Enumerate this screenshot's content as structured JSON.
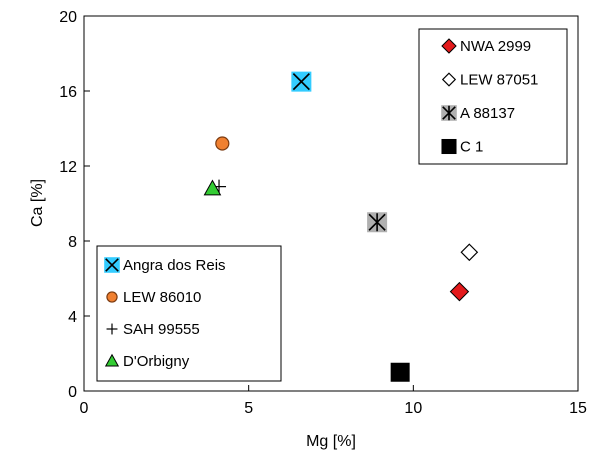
{
  "chart_data": {
    "type": "scatter",
    "xlabel": "Mg [%]",
    "ylabel": "Ca [%]",
    "xlim": [
      0,
      15
    ],
    "ylim": [
      0,
      20
    ],
    "xticks": [
      0,
      5,
      10,
      15
    ],
    "yticks": [
      0,
      4,
      8,
      12,
      16,
      20
    ],
    "xtick_labels": [
      "0",
      "5",
      "10",
      "15"
    ],
    "ytick_labels": [
      "0",
      "4",
      "8",
      "12",
      "16",
      "20"
    ],
    "grid": false,
    "series": [
      {
        "name": "NWA 2999",
        "marker": "diamond",
        "color": "#e31a1c",
        "stroke": "#000000",
        "x": [
          11.4
        ],
        "y": [
          5.3
        ]
      },
      {
        "name": "LEW 87051",
        "marker": "diamond-open",
        "color": "#ffffff",
        "stroke": "#000000",
        "x": [
          11.7
        ],
        "y": [
          7.4
        ]
      },
      {
        "name": "A 88137",
        "marker": "gray-star",
        "color": "#b0b0b0",
        "stroke": "#000000",
        "x": [
          8.9
        ],
        "y": [
          9.0
        ]
      },
      {
        "name": "C 1",
        "marker": "square",
        "color": "#000000",
        "stroke": "#000000",
        "x": [
          9.6
        ],
        "y": [
          1.0
        ]
      },
      {
        "name": "Angra dos Reis",
        "marker": "cyan-x",
        "color": "#33ccff",
        "stroke": "#000000",
        "x": [
          6.6
        ],
        "y": [
          16.5
        ]
      },
      {
        "name": "LEW 86010",
        "marker": "circle",
        "color": "#f08030",
        "stroke": "#000000",
        "x": [
          4.2
        ],
        "y": [
          13.2
        ]
      },
      {
        "name": "SAH 99555",
        "marker": "plus",
        "color": "#000000",
        "stroke": "#000000",
        "x": [
          4.1
        ],
        "y": [
          10.9
        ]
      },
      {
        "name": "D'Orbigny",
        "marker": "triangle",
        "color": "#33cc33",
        "stroke": "#000000",
        "x": [
          3.9
        ],
        "y": [
          10.8
        ]
      }
    ],
    "legends": [
      {
        "position": "top-right",
        "items": [
          "NWA 2999",
          "LEW 87051",
          "A 88137",
          "C 1"
        ]
      },
      {
        "position": "bottom-left",
        "items": [
          "Angra dos Reis",
          "LEW 86010",
          "SAH 99555",
          "D'Orbigny"
        ]
      }
    ]
  }
}
